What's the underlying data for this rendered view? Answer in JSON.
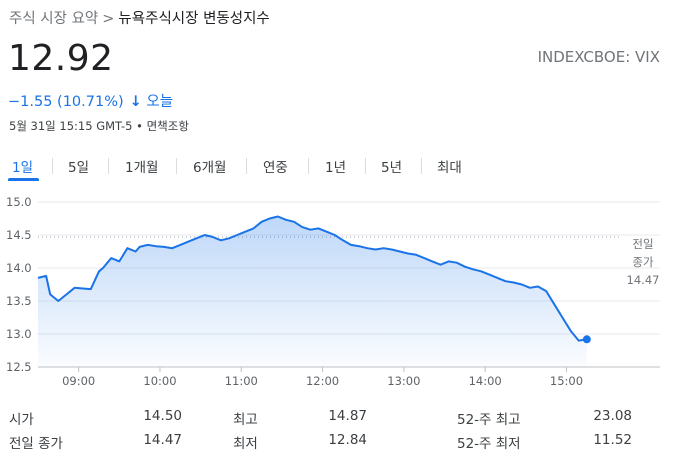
{
  "breadcrumb": {
    "parent": "주식 시장 요약",
    "separator": ">",
    "current": "뉴욕주식시장 변동성지수"
  },
  "quote": {
    "price": "12.92",
    "ticker": "INDEXCBOE: VIX",
    "change": "−1.55 (10.71%)",
    "change_period": "오늘",
    "timestamp": "5월 31일 15:15 GMT-5 • 면책조항",
    "color_down": "#1a73e8"
  },
  "tabs": [
    {
      "label": "1일",
      "active": true
    },
    {
      "label": "5일"
    },
    {
      "label": "1개월"
    },
    {
      "label": "6개월"
    },
    {
      "label": "연중"
    },
    {
      "label": "1년"
    },
    {
      "label": "5년"
    },
    {
      "label": "최대"
    }
  ],
  "chart_data": {
    "type": "area",
    "y_ticks": [
      "15.0",
      "14.5",
      "14.0",
      "13.5",
      "13.0",
      "12.5"
    ],
    "x_ticks": [
      "09:00",
      "10:00",
      "11:00",
      "12:00",
      "13:00",
      "14:00",
      "15:00"
    ],
    "ylim": [
      12.5,
      15.0
    ],
    "xlim": [
      8.5,
      16.15
    ],
    "prev_close_label": [
      "전일",
      "종가",
      "14.47"
    ],
    "prev_close": 14.47,
    "line_color": "#1a73e8",
    "x": [
      8.5,
      8.6,
      8.65,
      8.75,
      8.85,
      8.95,
      9.05,
      9.15,
      9.25,
      9.3,
      9.4,
      9.5,
      9.6,
      9.7,
      9.75,
      9.85,
      9.95,
      10.05,
      10.15,
      10.25,
      10.35,
      10.45,
      10.55,
      10.65,
      10.75,
      10.85,
      10.95,
      11.05,
      11.15,
      11.25,
      11.35,
      11.45,
      11.55,
      11.65,
      11.75,
      11.85,
      11.95,
      12.05,
      12.15,
      12.25,
      12.35,
      12.45,
      12.55,
      12.65,
      12.75,
      12.85,
      12.95,
      13.05,
      13.15,
      13.25,
      13.35,
      13.45,
      13.55,
      13.65,
      13.75,
      13.85,
      13.95,
      14.05,
      14.15,
      14.25,
      14.35,
      14.45,
      14.55,
      14.65,
      14.75,
      14.85,
      14.95,
      15.05,
      15.15,
      15.25
    ],
    "values": [
      13.85,
      13.88,
      13.6,
      13.5,
      13.6,
      13.7,
      13.69,
      13.68,
      13.95,
      14.0,
      14.15,
      14.1,
      14.3,
      14.25,
      14.32,
      14.35,
      14.33,
      14.32,
      14.3,
      14.35,
      14.4,
      14.45,
      14.5,
      14.47,
      14.42,
      14.45,
      14.5,
      14.55,
      14.6,
      14.7,
      14.75,
      14.78,
      14.73,
      14.7,
      14.62,
      14.58,
      14.6,
      14.55,
      14.5,
      14.42,
      14.35,
      14.33,
      14.3,
      14.28,
      14.3,
      14.28,
      14.25,
      14.22,
      14.2,
      14.15,
      14.1,
      14.05,
      14.1,
      14.08,
      14.02,
      13.98,
      13.95,
      13.9,
      13.85,
      13.8,
      13.78,
      13.75,
      13.7,
      13.72,
      13.65,
      13.45,
      13.25,
      13.05,
      12.9,
      12.92
    ]
  },
  "stats": {
    "rows": [
      [
        {
          "label": "시가",
          "value": "14.50"
        },
        {
          "label": "최고",
          "value": "14.87"
        },
        {
          "label": "52-주 최고",
          "value": "23.08"
        }
      ],
      [
        {
          "label": "전일 종가",
          "value": "14.47"
        },
        {
          "label": "최저",
          "value": "12.84"
        },
        {
          "label": "52-주 최저",
          "value": "11.52"
        }
      ]
    ]
  }
}
